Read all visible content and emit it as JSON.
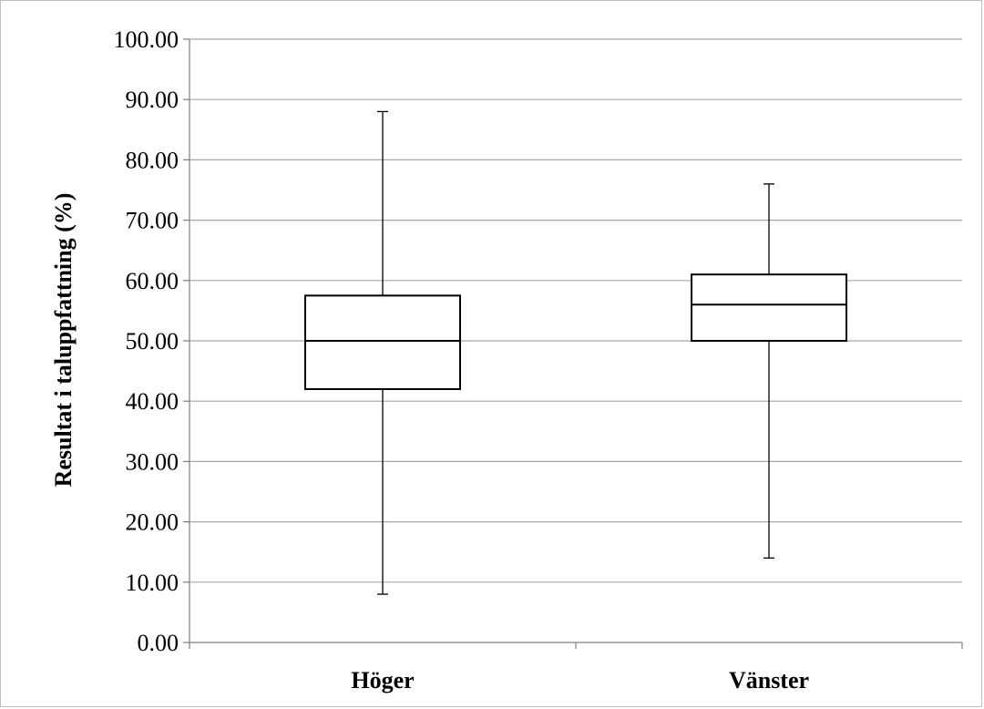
{
  "chart_data": {
    "type": "box",
    "ylabel": "Resultat i taluppfattning (%)",
    "ylim": [
      0,
      100
    ],
    "y_ticks": [
      "0.00",
      "10.00",
      "20.00",
      "30.00",
      "40.00",
      "50.00",
      "60.00",
      "70.00",
      "80.00",
      "90.00",
      "100.00"
    ],
    "grid": true,
    "categories": [
      "Höger",
      "Vänster"
    ],
    "boxes": [
      {
        "category": "Höger",
        "min": 8,
        "q1": 42,
        "median": 50,
        "q3": 57.5,
        "max": 88
      },
      {
        "category": "Vänster",
        "min": 14,
        "q1": 50,
        "median": 56,
        "q3": 61,
        "max": 76
      }
    ],
    "colors": {
      "grid": "#a6a6a6",
      "box_stroke": "#000000",
      "box_fill": "#ffffff"
    }
  }
}
